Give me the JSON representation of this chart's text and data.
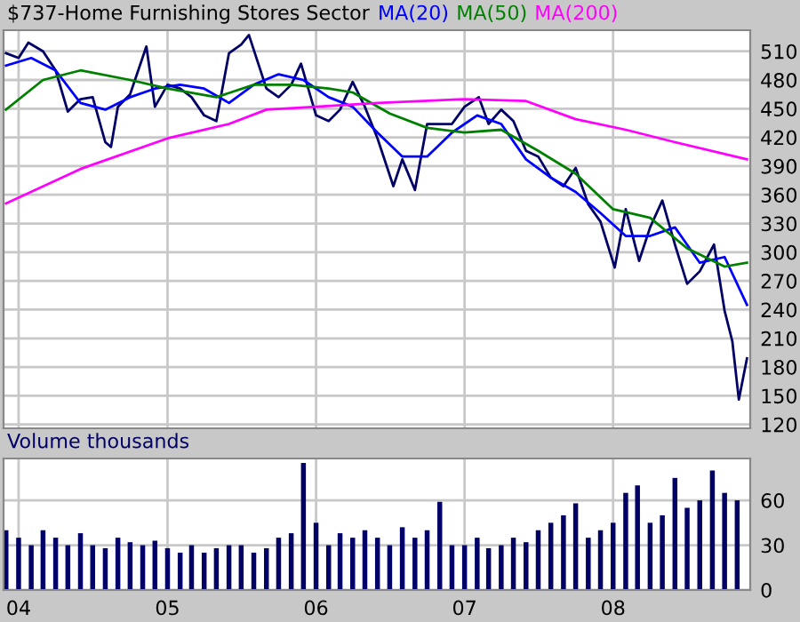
{
  "chart_data": [
    {
      "type": "line",
      "title": "$737-Home Furnishing Stores Sector",
      "tick_labels": "y",
      "grid": true,
      "xlim": [
        "2003-11-25",
        "2008-12-03"
      ],
      "xticks": [
        {
          "value": "2004-01-01",
          "label": null
        },
        {
          "value": "2005-01-01",
          "label": null
        },
        {
          "value": "2006-01-01",
          "label": null
        },
        {
          "value": "2007-01-01",
          "label": null
        },
        {
          "value": "2008-01-01",
          "label": null
        }
      ],
      "ylim": [
        116,
        532
      ],
      "yticks": [
        120,
        150,
        180,
        210,
        240,
        270,
        300,
        330,
        360,
        390,
        420,
        450,
        480,
        510
      ],
      "series": [
        {
          "color": "#000066",
          "x": [
            "2003-12-01",
            "2004-01-01",
            "2004-01-25",
            "2004-03-01",
            "2004-04-01",
            "2004-05-01",
            "2004-06-01",
            "2004-07-01",
            "2004-08-01",
            "2004-08-15",
            "2004-09-01",
            "2004-10-01",
            "2004-11-10",
            "2004-12-01",
            "2005-01-01",
            "2005-02-01",
            "2005-03-01",
            "2005-04-01",
            "2005-05-01",
            "2005-06-01",
            "2005-07-01",
            "2005-07-20",
            "2005-09-01",
            "2005-10-01",
            "2005-11-01",
            "2005-11-25",
            "2006-01-01",
            "2006-02-01",
            "2006-03-01",
            "2006-04-01",
            "2006-05-01",
            "2006-06-01",
            "2006-07-10",
            "2006-08-01",
            "2006-09-01",
            "2006-10-01",
            "2006-11-01",
            "2006-12-01",
            "2007-01-01",
            "2007-02-05",
            "2007-03-01",
            "2007-04-01",
            "2007-05-01",
            "2007-06-01",
            "2007-07-01",
            "2007-08-01",
            "2007-09-01",
            "2007-10-01",
            "2007-11-01",
            "2007-12-01",
            "2008-01-05",
            "2008-02-01",
            "2008-03-05",
            "2008-04-01",
            "2008-05-01",
            "2008-06-01",
            "2008-07-01",
            "2008-08-01",
            "2008-09-05",
            "2008-10-01",
            "2008-10-20",
            "2008-11-05",
            "2008-11-25"
          ],
          "values": [
            508,
            503,
            519,
            510,
            490,
            447,
            460,
            462,
            415,
            410,
            452,
            465,
            515,
            452,
            475,
            471,
            462,
            443,
            437,
            508,
            517,
            527,
            471,
            462,
            475,
            497,
            443,
            437,
            449,
            478,
            452,
            419,
            369,
            397,
            365,
            434,
            434,
            434,
            452,
            462,
            434,
            449,
            437,
            406,
            400,
            378,
            369,
            388,
            350,
            332,
            284,
            345,
            291,
            326,
            354,
            308,
            267,
            280,
            308,
            239,
            207,
            146,
            189
          ]
        },
        {
          "name": "MA(20)",
          "color": "#0000ff",
          "x": [
            "2003-12-01",
            "2004-02-01",
            "2004-04-01",
            "2004-06-01",
            "2004-08-01",
            "2004-10-01",
            "2004-12-01",
            "2005-02-01",
            "2005-04-01",
            "2005-06-01",
            "2005-08-01",
            "2005-10-01",
            "2005-12-01",
            "2006-02-01",
            "2006-04-01",
            "2006-06-01",
            "2006-08-01",
            "2006-10-01",
            "2006-12-01",
            "2007-02-01",
            "2007-04-01",
            "2007-06-01",
            "2007-08-01",
            "2007-10-01",
            "2007-12-01",
            "2008-02-01",
            "2008-04-01",
            "2008-06-01",
            "2008-08-01",
            "2008-10-01",
            "2008-11-25"
          ],
          "values": [
            495,
            503,
            490,
            456,
            449,
            462,
            471,
            475,
            471,
            456,
            475,
            486,
            480,
            462,
            452,
            425,
            400,
            400,
            425,
            443,
            434,
            397,
            378,
            363,
            341,
            317,
            317,
            326,
            289,
            295,
            245
          ]
        },
        {
          "name": "MA(50)",
          "color": "#008000",
          "x": [
            "2003-12-01",
            "2004-03-01",
            "2004-06-01",
            "2004-10-01",
            "2005-01-01",
            "2005-05-01",
            "2005-08-01",
            "2005-11-01",
            "2006-02-01",
            "2006-04-01",
            "2006-07-01",
            "2006-10-01",
            "2007-01-01",
            "2007-04-01",
            "2007-07-01",
            "2007-10-01",
            "2008-01-01",
            "2008-04-01",
            "2008-07-01",
            "2008-10-01",
            "2008-11-25"
          ],
          "values": [
            449,
            480,
            490,
            480,
            471,
            462,
            475,
            475,
            471,
            467,
            445,
            430,
            425,
            428,
            406,
            382,
            345,
            336,
            304,
            285,
            289
          ]
        },
        {
          "name": "MA(200)",
          "color": "#ff00ff",
          "x": [
            "2003-12-01",
            "2004-06-01",
            "2005-01-01",
            "2005-06-01",
            "2005-09-01",
            "2006-01-01",
            "2006-06-01",
            "2007-01-01",
            "2007-06-01",
            "2007-10-01",
            "2008-02-01",
            "2008-06-01",
            "2008-11-25"
          ],
          "values": [
            351,
            387,
            419,
            434,
            449,
            452,
            456,
            460,
            458,
            439,
            428,
            415,
            397
          ]
        }
      ]
    },
    {
      "type": "bar",
      "title": "Volume thousands",
      "grid": true,
      "xlim": [
        "2003-11-25",
        "2008-12-03"
      ],
      "xticks": [
        {
          "value": "2004-01-01",
          "label": "04"
        },
        {
          "value": "2005-01-01",
          "label": "05"
        },
        {
          "value": "2006-01-01",
          "label": "06"
        },
        {
          "value": "2007-01-01",
          "label": "07"
        },
        {
          "value": "2008-01-01",
          "label": "08"
        }
      ],
      "ylim": [
        0,
        88
      ],
      "yticks": [
        0,
        30,
        60
      ],
      "series": [
        {
          "color": "#000066",
          "x": [
            "2003-12-01",
            "2004-01-01",
            "2004-02-01",
            "2004-03-01",
            "2004-04-01",
            "2004-05-01",
            "2004-06-01",
            "2004-07-01",
            "2004-08-01",
            "2004-09-01",
            "2004-10-01",
            "2004-11-01",
            "2004-12-01",
            "2005-01-01",
            "2005-02-01",
            "2005-03-01",
            "2005-04-01",
            "2005-05-01",
            "2005-06-01",
            "2005-07-01",
            "2005-08-01",
            "2005-09-01",
            "2005-10-01",
            "2005-11-01",
            "2005-12-01",
            "2006-01-01",
            "2006-02-01",
            "2006-03-01",
            "2006-04-01",
            "2006-05-01",
            "2006-06-01",
            "2006-07-01",
            "2006-08-01",
            "2006-09-01",
            "2006-10-01",
            "2006-11-01",
            "2006-12-01",
            "2007-01-01",
            "2007-02-01",
            "2007-03-01",
            "2007-04-01",
            "2007-05-01",
            "2007-06-01",
            "2007-07-01",
            "2007-08-01",
            "2007-09-01",
            "2007-10-01",
            "2007-11-01",
            "2007-12-01",
            "2008-01-01",
            "2008-02-01",
            "2008-03-01",
            "2008-04-01",
            "2008-05-01",
            "2008-06-01",
            "2008-07-01",
            "2008-08-01",
            "2008-09-01",
            "2008-10-01",
            "2008-11-01"
          ],
          "values": [
            40,
            35,
            30,
            40,
            35,
            30,
            38,
            30,
            28,
            35,
            32,
            30,
            33,
            28,
            25,
            30,
            25,
            28,
            30,
            30,
            25,
            28,
            35,
            38,
            85,
            45,
            30,
            38,
            35,
            40,
            35,
            30,
            42,
            35,
            40,
            59,
            30,
            30,
            35,
            28,
            30,
            35,
            32,
            40,
            45,
            50,
            58,
            35,
            40,
            45,
            65,
            70,
            45,
            50,
            75,
            55,
            60,
            80,
            65,
            60
          ]
        }
      ]
    }
  ]
}
